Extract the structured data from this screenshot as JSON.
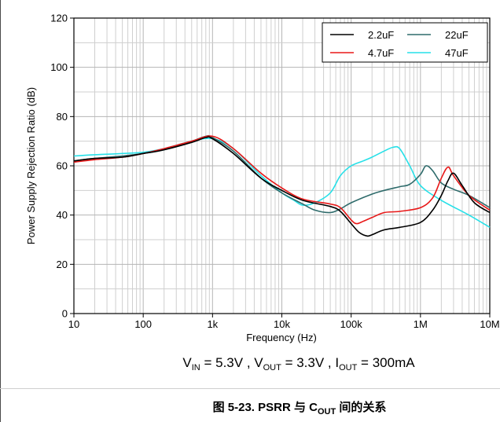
{
  "chart_data": {
    "type": "line",
    "xlabel": "Frequency (Hz)",
    "ylabel": "Power Supply Rejection Ratio (dB)",
    "x_scale": "log",
    "xlim": [
      10,
      10000000
    ],
    "ylim": [
      0,
      120
    ],
    "x_ticks": [
      {
        "value": 10,
        "label": "10"
      },
      {
        "value": 100,
        "label": "100"
      },
      {
        "value": 1000,
        "label": "1k"
      },
      {
        "value": 10000,
        "label": "10k"
      },
      {
        "value": 100000,
        "label": "100k"
      },
      {
        "value": 1000000,
        "label": "1M"
      },
      {
        "value": 10000000,
        "label": "10M"
      }
    ],
    "y_ticks": [
      0,
      20,
      40,
      60,
      80,
      100,
      120
    ],
    "grid": true,
    "legend_position": "top-right",
    "series": [
      {
        "name": "2.2uF",
        "color": "#000000",
        "x": [
          10,
          20,
          50,
          100,
          200,
          500,
          800,
          1000,
          2000,
          5000,
          10000,
          20000,
          50000,
          70000,
          100000,
          130000,
          170000,
          200000,
          300000,
          500000,
          1000000,
          1500000,
          2000000,
          2500000,
          3000000,
          4000000,
          6000000,
          10000000
        ],
        "y": [
          62,
          63,
          63.5,
          65,
          66.5,
          69.5,
          71.5,
          71,
          65,
          55,
          50,
          46,
          43.5,
          41.5,
          36.5,
          33,
          31.5,
          32,
          34,
          35,
          37,
          42,
          48,
          54,
          57,
          52,
          45,
          41
        ]
      },
      {
        "name": "22uF",
        "color": "#2e6b6b",
        "x": [
          10,
          20,
          50,
          100,
          200,
          500,
          800,
          1000,
          2000,
          5000,
          10000,
          20000,
          30000,
          50000,
          70000,
          100000,
          200000,
          300000,
          500000,
          700000,
          1000000,
          1200000,
          1500000,
          2000000,
          3000000,
          5000000,
          10000000
        ],
        "y": [
          62,
          63,
          64,
          65,
          66.5,
          70,
          72,
          71.5,
          66,
          55,
          49,
          44.5,
          42,
          41,
          42.5,
          45,
          48.5,
          50,
          51.5,
          52.5,
          56.5,
          60,
          58,
          53,
          50.5,
          48,
          43
        ]
      },
      {
        "name": "4.7uF",
        "color": "#e81818",
        "x": [
          10,
          20,
          50,
          100,
          200,
          500,
          1000,
          2000,
          5000,
          10000,
          20000,
          50000,
          70000,
          100000,
          120000,
          150000,
          200000,
          300000,
          500000,
          1000000,
          1500000,
          2000000,
          2500000,
          3000000,
          5000000,
          10000000
        ],
        "y": [
          61.5,
          62.5,
          63.5,
          65,
          67,
          70,
          72,
          67,
          57,
          51,
          46.5,
          44.5,
          43,
          38,
          36.5,
          37.5,
          39,
          41,
          41.5,
          43,
          47,
          55,
          59.5,
          56,
          48,
          42
        ]
      },
      {
        "name": "47uF",
        "color": "#27e0e8",
        "x": [
          10,
          20,
          50,
          100,
          200,
          500,
          1000,
          2000,
          5000,
          10000,
          15000,
          20000,
          30000,
          50000,
          70000,
          100000,
          150000,
          200000,
          300000,
          400000,
          500000,
          700000,
          1000000,
          2000000,
          5000000,
          10000000
        ],
        "y": [
          64,
          64.5,
          65,
          65.5,
          67,
          70,
          71,
          67,
          56,
          49,
          46,
          44,
          45,
          49,
          56,
          60,
          62,
          63.5,
          66,
          67.5,
          67,
          60,
          52,
          46,
          40,
          35
        ]
      }
    ]
  },
  "conditions": {
    "vin_sym": "V",
    "vin_sub": "IN",
    "vin_val": " = 5.3V , ",
    "vout_sym": "V",
    "vout_sub": "OUT",
    "vout_val": " = 3.3V , ",
    "iout_sym": "I",
    "iout_sub": "OUT",
    "iout_val": " = 300mA"
  },
  "caption": {
    "prefix": "图 5-23. PSRR 与 C",
    "sub": "OUT",
    "suffix": " 间的关系"
  }
}
